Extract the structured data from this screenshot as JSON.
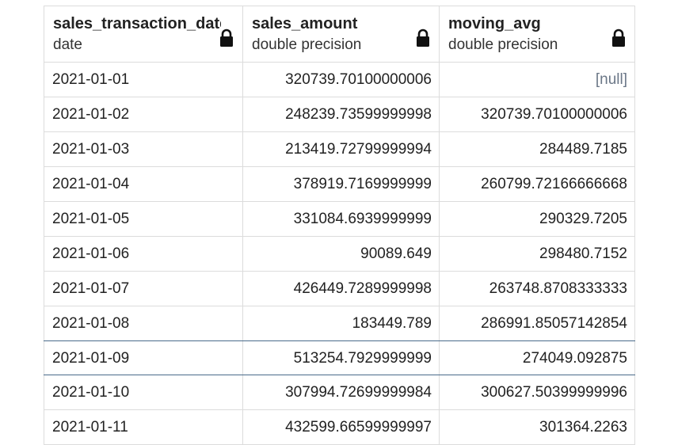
{
  "columns": [
    {
      "name": "sales_transaction_date",
      "type": "date"
    },
    {
      "name": "sales_amount",
      "type": "double precision"
    },
    {
      "name": "moving_avg",
      "type": "double precision"
    }
  ],
  "rows": [
    {
      "date": "2021-01-01",
      "sales_amount": "320739.70100000006",
      "moving_avg": "[null]"
    },
    {
      "date": "2021-01-02",
      "sales_amount": "248239.73599999998",
      "moving_avg": "320739.70100000006"
    },
    {
      "date": "2021-01-03",
      "sales_amount": "213419.72799999994",
      "moving_avg": "284489.7185"
    },
    {
      "date": "2021-01-04",
      "sales_amount": "378919.7169999999",
      "moving_avg": "260799.72166666668"
    },
    {
      "date": "2021-01-05",
      "sales_amount": "331084.6939999999",
      "moving_avg": "290329.7205"
    },
    {
      "date": "2021-01-06",
      "sales_amount": "90089.649",
      "moving_avg": "298480.7152"
    },
    {
      "date": "2021-01-07",
      "sales_amount": "426449.7289999998",
      "moving_avg": "263748.8708333333"
    },
    {
      "date": "2021-01-08",
      "sales_amount": "183449.789",
      "moving_avg": "286991.85057142854"
    },
    {
      "date": "2021-01-09",
      "sales_amount": "513254.7929999999",
      "moving_avg": "274049.092875"
    },
    {
      "date": "2021-01-10",
      "sales_amount": "307994.72699999984",
      "moving_avg": "300627.50399999996"
    },
    {
      "date": "2021-01-11",
      "sales_amount": "432599.66599999997",
      "moving_avg": "301364.2263"
    }
  ],
  "selected_row": 8,
  "icons": {
    "column_lock": "lock-icon"
  }
}
